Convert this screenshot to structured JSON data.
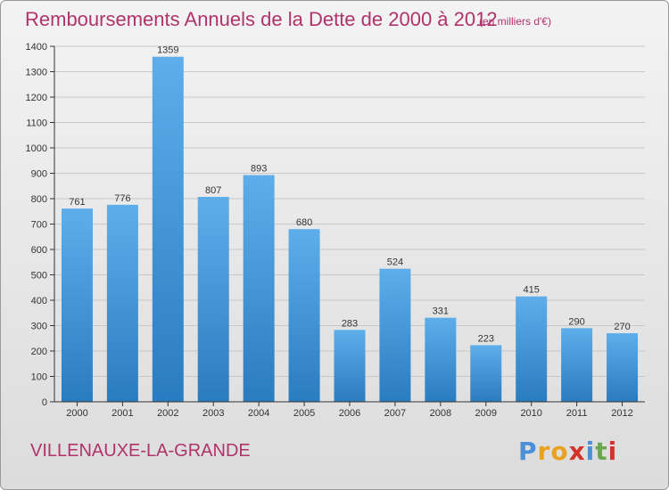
{
  "header": {
    "title": "Remboursements Annuels de la Dette de 2000 à 2012",
    "subtitle": "(en milliers d'€)"
  },
  "footer": {
    "city": "VILLENAUXE-LA-GRANDE",
    "logo_text": "Proxiti",
    "logo_letters": [
      {
        "ch": "P",
        "color": "#4a90d9"
      },
      {
        "ch": "r",
        "color": "#e8a21f"
      },
      {
        "ch": "o",
        "color": "#e8a21f"
      },
      {
        "ch": "x",
        "color": "#d0342c"
      },
      {
        "ch": "i",
        "color": "#4a90d9"
      },
      {
        "ch": "t",
        "color": "#6aa84f"
      },
      {
        "ch": "i",
        "color": "#d0342c"
      }
    ]
  },
  "colors": {
    "title": "#b0336b",
    "bar_light": "#5daeea",
    "bar_dark": "#2a7cc0",
    "axis": "#333333",
    "grid": "#c8c8c8"
  },
  "chart_data": {
    "type": "bar",
    "title": "Remboursements Annuels de la Dette de 2000 à 2012",
    "subtitle": "(en milliers d'€)",
    "xlabel": "",
    "ylabel": "",
    "categories": [
      "2000",
      "2001",
      "2002",
      "2003",
      "2004",
      "2005",
      "2006",
      "2007",
      "2008",
      "2009",
      "2010",
      "2011",
      "2012"
    ],
    "values": [
      761,
      776,
      1359,
      807,
      893,
      680,
      283,
      524,
      331,
      223,
      415,
      290,
      270
    ],
    "ylim": [
      0,
      1400
    ],
    "yticks": [
      0,
      100,
      200,
      300,
      400,
      500,
      600,
      700,
      800,
      900,
      1000,
      1100,
      1200,
      1300,
      1400
    ],
    "grid": true,
    "legend": "none"
  }
}
